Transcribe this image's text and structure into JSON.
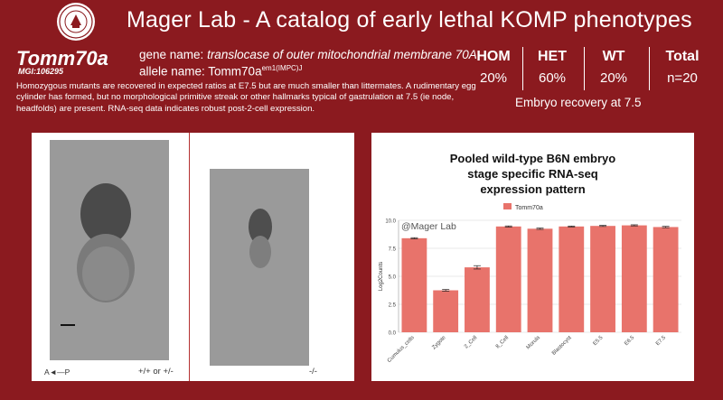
{
  "header": {
    "title": "Mager Lab - A catalog of early lethal KOMP phenotypes",
    "logo_icon": "university-seal-icon"
  },
  "gene": {
    "symbol": "Tomm70a",
    "mgi": "MGI:106295",
    "name_prefix": "gene name: ",
    "name": "translocase of outer mitochondrial membrane 70A",
    "allele_prefix": "allele name: Tomm70a",
    "allele_sup": "em1(IMPC)J",
    "description": "Homozygous mutants are recovered in expected ratios at E7.5 but are much smaller than littermates. A rudimentary egg cylinder has formed, but no morphological primitive streak or other hallmarks typical of gastrulation at 7.5 (ie node, headfolds) are present. RNA-seq data indicates robust post-2-cell expression."
  },
  "stats": {
    "columns": [
      {
        "header": "HOM",
        "value": "20%"
      },
      {
        "header": "HET",
        "value": "60%"
      },
      {
        "header": "WT",
        "value": "20%"
      },
      {
        "header": "Total",
        "value": "n=20"
      }
    ],
    "recovery_label": "Embryo recovery at 7.5"
  },
  "images": {
    "axis_label": "A◄—P",
    "left_genotype": "+/+ or +/-",
    "right_genotype": "-/-"
  },
  "chart_data": {
    "type": "bar",
    "title_lines": [
      "Pooled wild-type B6N embryo",
      "stage specific RNA-seq",
      "expression pattern"
    ],
    "watermark": "@Mager Lab",
    "series": [
      {
        "name": "Tomm70a",
        "values": [
          8.4,
          3.75,
          5.8,
          9.45,
          9.25,
          9.45,
          9.5,
          9.55,
          9.4
        ],
        "errors": [
          0.05,
          0.07,
          0.15,
          0.05,
          0.06,
          0.04,
          0.05,
          0.05,
          0.06
        ]
      }
    ],
    "categories": [
      "Cumulus_cells",
      "Zygote",
      "2_Cell",
      "8_Cell",
      "Morula",
      "Blastocyst",
      "E5.5",
      "E6.5",
      "E7.5"
    ],
    "ylabel": "Log2Counts",
    "yticks": [
      0.0,
      2.5,
      5.0,
      7.5,
      10.0
    ],
    "yticklabels": [
      "0.0",
      "2.5",
      "5.0",
      "7.5",
      "10.0"
    ],
    "ylim": [
      0,
      10
    ],
    "bar_color": "#e8736b",
    "grid": true,
    "legend": "top"
  }
}
